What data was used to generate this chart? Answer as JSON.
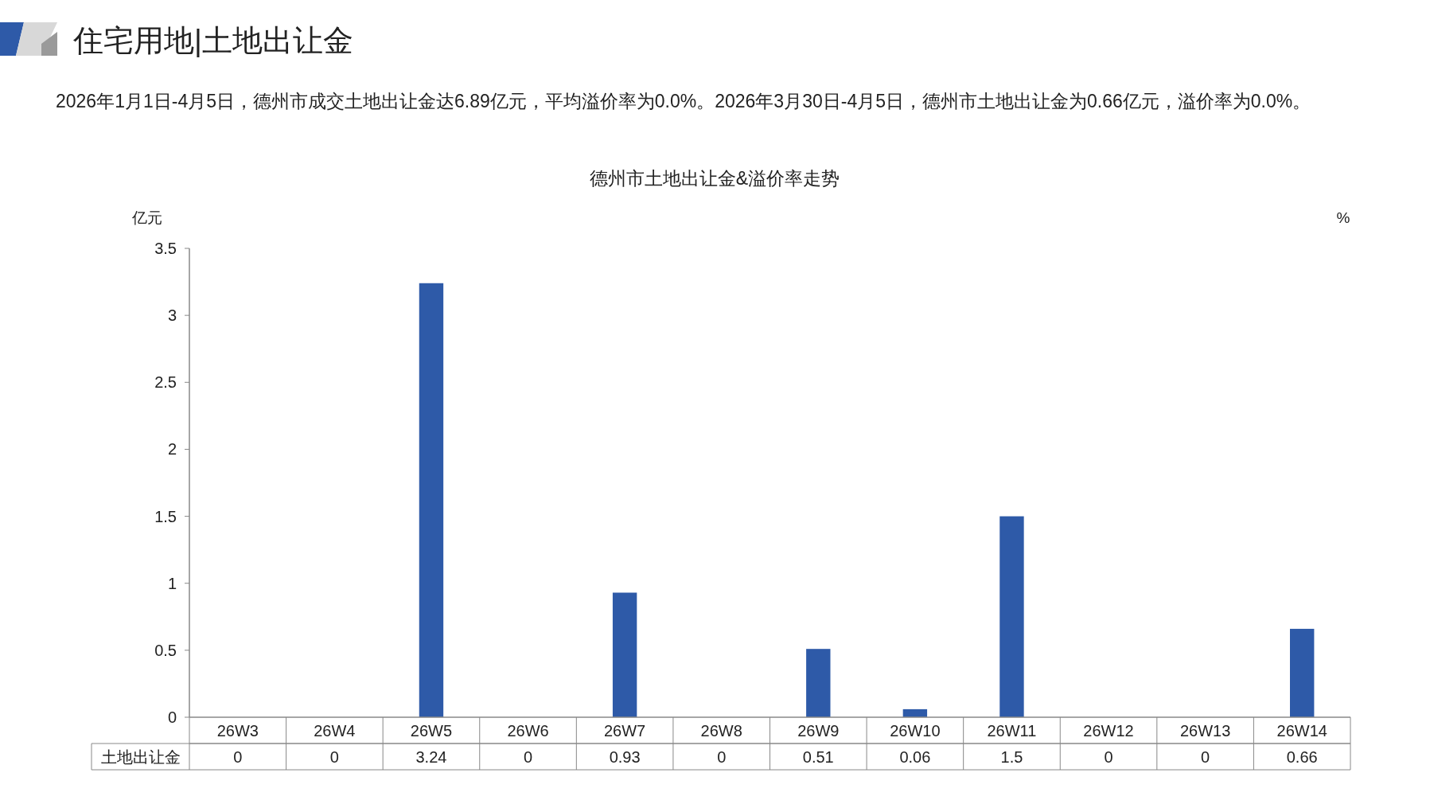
{
  "chart_data": {
    "type": "bar",
    "title": "德州市土地出让金&溢价率走势",
    "annotations": [
      "住宅用地|土地出让金",
      "2026年1月1日-4月5日，德州市成交土地出让金达6.89亿元，平均溢价率为0.0%。2026年3月30日-4月5日，德州市土地出让金为0.66亿元，溢价率为0.0%。"
    ],
    "categories": [
      "26W3",
      "26W4",
      "26W5",
      "26W6",
      "26W7",
      "26W8",
      "26W9",
      "26W10",
      "26W11",
      "26W12",
      "26W13",
      "26W14"
    ],
    "series": [
      {
        "name": "土地出让金",
        "color": "#2e5aa8",
        "values": [
          0,
          0,
          3.24,
          0,
          0.93,
          0,
          0.51,
          0.06,
          1.5,
          0,
          0,
          0.66
        ]
      }
    ],
    "ylabel": "亿元",
    "y2label": "%",
    "ylim": [
      0,
      3.5
    ],
    "yticks": [
      0,
      0.5,
      1,
      1.5,
      2,
      2.5,
      3,
      3.5
    ],
    "data_labels": true,
    "grid": false
  }
}
